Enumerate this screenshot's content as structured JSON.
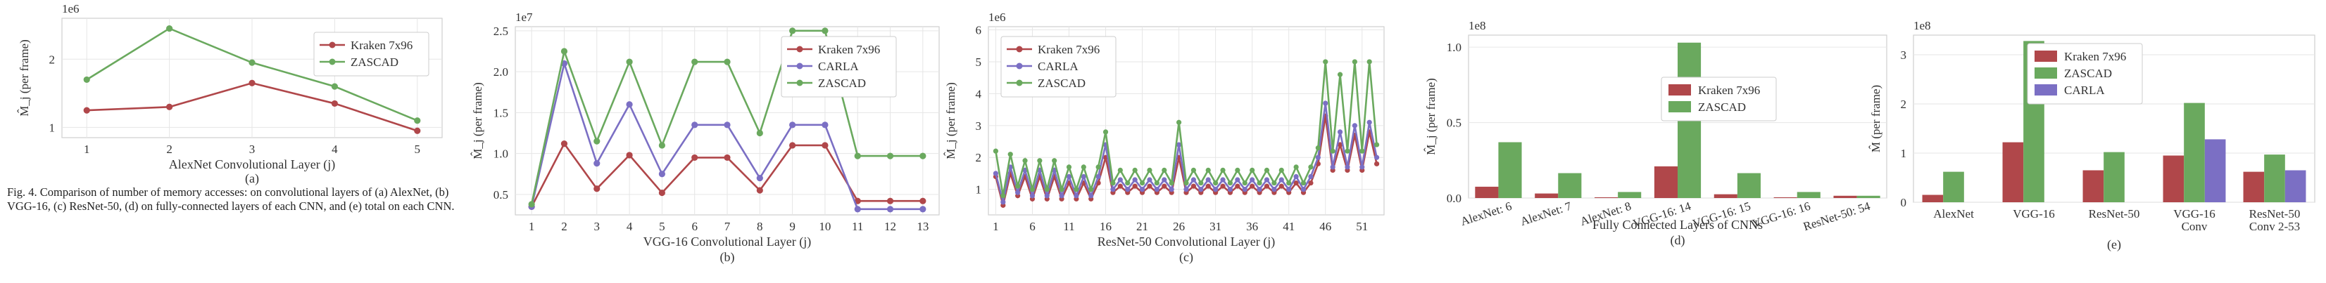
{
  "figure_caption": {
    "label": "Fig. 4.",
    "text": "Comparison of number of memory accesses: on convolutional layers of (a) AlexNet, (b) VGG-16, (c) ResNet-50, (d) on fully-connected layers of each CNN, and (e) total on each CNN."
  },
  "colors": {
    "kraken": "#b0474a",
    "zascad": "#6aa95e",
    "carla": "#7b6fc4"
  },
  "chart_data": [
    {
      "id": "a",
      "type": "line",
      "panel_label": "(a)",
      "xlabel": "AlexNet Convolutional Layer (j)",
      "ylabel": "M̂_j (per frame)",
      "exponent_label": "1e6",
      "x": [
        1,
        2,
        3,
        4,
        5
      ],
      "xticks": [
        "1",
        "2",
        "3",
        "4",
        "5"
      ],
      "xlim": [
        0.7,
        5.3
      ],
      "ylim": [
        0.85,
        2.6
      ],
      "yticks": [
        1,
        2
      ],
      "grid": true,
      "legend_position": "top-right",
      "series": [
        {
          "name": "Kraken 7x96",
          "color_key": "kraken",
          "values": [
            1.25,
            1.3,
            1.65,
            1.35,
            0.95
          ]
        },
        {
          "name": "ZASCAD",
          "color_key": "zascad",
          "values": [
            1.7,
            2.45,
            1.95,
            1.6,
            1.1
          ]
        }
      ]
    },
    {
      "id": "b",
      "type": "line",
      "panel_label": "(b)",
      "xlabel": "VGG-16 Convolutional Layer (j)",
      "ylabel": "M̂_j (per frame)",
      "exponent_label": "1e7",
      "x": [
        1,
        2,
        3,
        4,
        5,
        6,
        7,
        8,
        9,
        10,
        11,
        12,
        13
      ],
      "xticks": [
        "1",
        "2",
        "3",
        "4",
        "5",
        "6",
        "7",
        "8",
        "9",
        "10",
        "11",
        "12",
        "13"
      ],
      "xlim": [
        0.5,
        13.5
      ],
      "ylim": [
        0.25,
        2.55
      ],
      "yticks": [
        0.5,
        1.0,
        1.5,
        2.0,
        2.5
      ],
      "ytick_labels": [
        "0.5",
        "1.0",
        "1.5",
        "2.0",
        "2.5"
      ],
      "grid": true,
      "legend_position": "top-right",
      "series": [
        {
          "name": "Kraken 7x96",
          "color_key": "kraken",
          "values": [
            0.35,
            1.12,
            0.57,
            0.98,
            0.52,
            0.95,
            0.95,
            0.55,
            1.1,
            1.1,
            0.42,
            0.42,
            0.42
          ]
        },
        {
          "name": "CARLA",
          "color_key": "carla",
          "values": [
            0.35,
            2.1,
            0.88,
            1.6,
            0.75,
            1.35,
            1.35,
            0.7,
            1.35,
            1.35,
            0.32,
            0.32,
            0.32
          ]
        },
        {
          "name": "ZASCAD",
          "color_key": "zascad",
          "values": [
            0.38,
            2.25,
            1.15,
            2.12,
            1.1,
            2.12,
            2.12,
            1.25,
            2.5,
            2.5,
            0.97,
            0.97,
            0.97
          ]
        }
      ]
    },
    {
      "id": "c",
      "type": "line",
      "panel_label": "(c)",
      "xlabel": "ResNet-50 Convolutional Layer (j)",
      "ylabel": "M̂_j (per frame)",
      "exponent_label": "1e6",
      "x": [
        1,
        2,
        3,
        4,
        5,
        6,
        7,
        8,
        9,
        10,
        11,
        12,
        13,
        14,
        15,
        16,
        17,
        18,
        19,
        20,
        21,
        22,
        23,
        24,
        25,
        26,
        27,
        28,
        29,
        30,
        31,
        32,
        33,
        34,
        35,
        36,
        37,
        38,
        39,
        40,
        41,
        42,
        43,
        44,
        45,
        46,
        47,
        48,
        49,
        50,
        51,
        52,
        53
      ],
      "xticks": [
        "1",
        "6",
        "11",
        "16",
        "21",
        "26",
        "31",
        "36",
        "41",
        "46",
        "51"
      ],
      "xtick_values": [
        1,
        6,
        11,
        16,
        21,
        26,
        31,
        36,
        41,
        46,
        51
      ],
      "xlim": [
        0,
        54
      ],
      "ylim": [
        0.2,
        6.1
      ],
      "yticks": [
        1,
        2,
        3,
        4,
        5,
        6
      ],
      "grid": true,
      "legend_position": "top-left",
      "series": [
        {
          "name": "Kraken 7x96",
          "color_key": "kraken",
          "values": [
            1.4,
            0.5,
            1.5,
            0.8,
            1.4,
            0.7,
            1.4,
            0.7,
            1.4,
            0.7,
            1.2,
            0.7,
            1.2,
            0.7,
            1.2,
            2.0,
            0.9,
            1.1,
            0.9,
            1.1,
            0.9,
            1.1,
            0.9,
            1.1,
            0.9,
            2.0,
            0.9,
            1.1,
            0.9,
            1.1,
            0.9,
            1.1,
            0.9,
            1.1,
            0.9,
            1.1,
            0.9,
            1.1,
            0.9,
            1.1,
            0.9,
            1.2,
            0.9,
            1.2,
            1.8,
            3.3,
            1.6,
            2.4,
            1.6,
            2.7,
            1.6,
            2.8,
            1.8
          ]
        },
        {
          "name": "CARLA",
          "color_key": "carla",
          "values": [
            1.5,
            0.6,
            1.7,
            0.9,
            1.6,
            0.8,
            1.6,
            0.8,
            1.6,
            0.8,
            1.4,
            0.8,
            1.4,
            0.8,
            1.4,
            2.4,
            1.0,
            1.3,
            1.0,
            1.3,
            1.0,
            1.3,
            1.0,
            1.3,
            1.0,
            2.4,
            1.0,
            1.3,
            1.0,
            1.3,
            1.0,
            1.3,
            1.0,
            1.3,
            1.0,
            1.3,
            1.0,
            1.3,
            1.0,
            1.3,
            1.0,
            1.4,
            1.0,
            1.4,
            2.0,
            3.7,
            1.7,
            2.8,
            1.7,
            3.0,
            1.7,
            3.1,
            2.0
          ]
        },
        {
          "name": "ZASCAD",
          "color_key": "zascad",
          "values": [
            2.2,
            0.8,
            2.1,
            1.1,
            1.9,
            1.0,
            1.9,
            1.0,
            1.9,
            1.0,
            1.7,
            1.0,
            1.7,
            1.0,
            1.7,
            2.8,
            1.2,
            1.6,
            1.2,
            1.6,
            1.2,
            1.6,
            1.2,
            1.6,
            1.2,
            3.1,
            1.2,
            1.6,
            1.2,
            1.6,
            1.2,
            1.6,
            1.2,
            1.6,
            1.2,
            1.6,
            1.2,
            1.6,
            1.2,
            1.6,
            1.2,
            1.7,
            1.2,
            1.7,
            2.3,
            5.0,
            2.2,
            4.6,
            2.2,
            5.0,
            2.2,
            5.0,
            2.4
          ]
        }
      ]
    },
    {
      "id": "d",
      "type": "bar",
      "panel_label": "(d)",
      "xlabel": "Fully Connected Layers of CNNs",
      "ylabel": "M̂_j (per frame)",
      "exponent_label": "1e8",
      "categories": [
        "AlexNet: 6",
        "AlexNet: 7",
        "AlexNet: 8",
        "VGG-16: 14",
        "VGG-16: 15",
        "VGG-16: 16",
        "ResNet-50: 54"
      ],
      "ylim": [
        0,
        1.08
      ],
      "yticks": [
        0.0,
        0.5,
        1.0
      ],
      "ytick_labels": [
        "0.0",
        "0.5",
        "1.0"
      ],
      "grid": true,
      "legend_position": "center-right",
      "series": [
        {
          "name": "Kraken 7x96",
          "color_key": "kraken",
          "values": [
            0.075,
            0.03,
            0.005,
            0.21,
            0.025,
            0.005,
            0.015
          ]
        },
        {
          "name": "ZASCAD",
          "color_key": "zascad",
          "values": [
            0.37,
            0.165,
            0.04,
            1.03,
            0.165,
            0.04,
            0.015
          ]
        }
      ]
    },
    {
      "id": "e",
      "type": "bar",
      "panel_label": "(e)",
      "xlabel": "",
      "ylabel": "M̂ (per frame)",
      "exponent_label": "1e8",
      "categories": [
        "AlexNet",
        "VGG-16",
        "ResNet-50",
        "VGG-16 Conv",
        "ResNet-50 Conv 2-53"
      ],
      "ylim": [
        0,
        3.4
      ],
      "yticks": [
        0,
        1,
        2,
        3
      ],
      "grid": true,
      "legend_position": "top-center",
      "series": [
        {
          "name": "Kraken 7x96",
          "color_key": "kraken",
          "values": [
            0.15,
            1.22,
            0.65,
            0.95,
            0.62
          ]
        },
        {
          "name": "ZASCAD",
          "color_key": "zascad",
          "values": [
            0.62,
            3.28,
            1.02,
            2.02,
            0.97
          ]
        },
        {
          "name": "CARLA",
          "color_key": "carla",
          "values": [
            null,
            null,
            null,
            1.28,
            0.65
          ]
        }
      ]
    }
  ]
}
